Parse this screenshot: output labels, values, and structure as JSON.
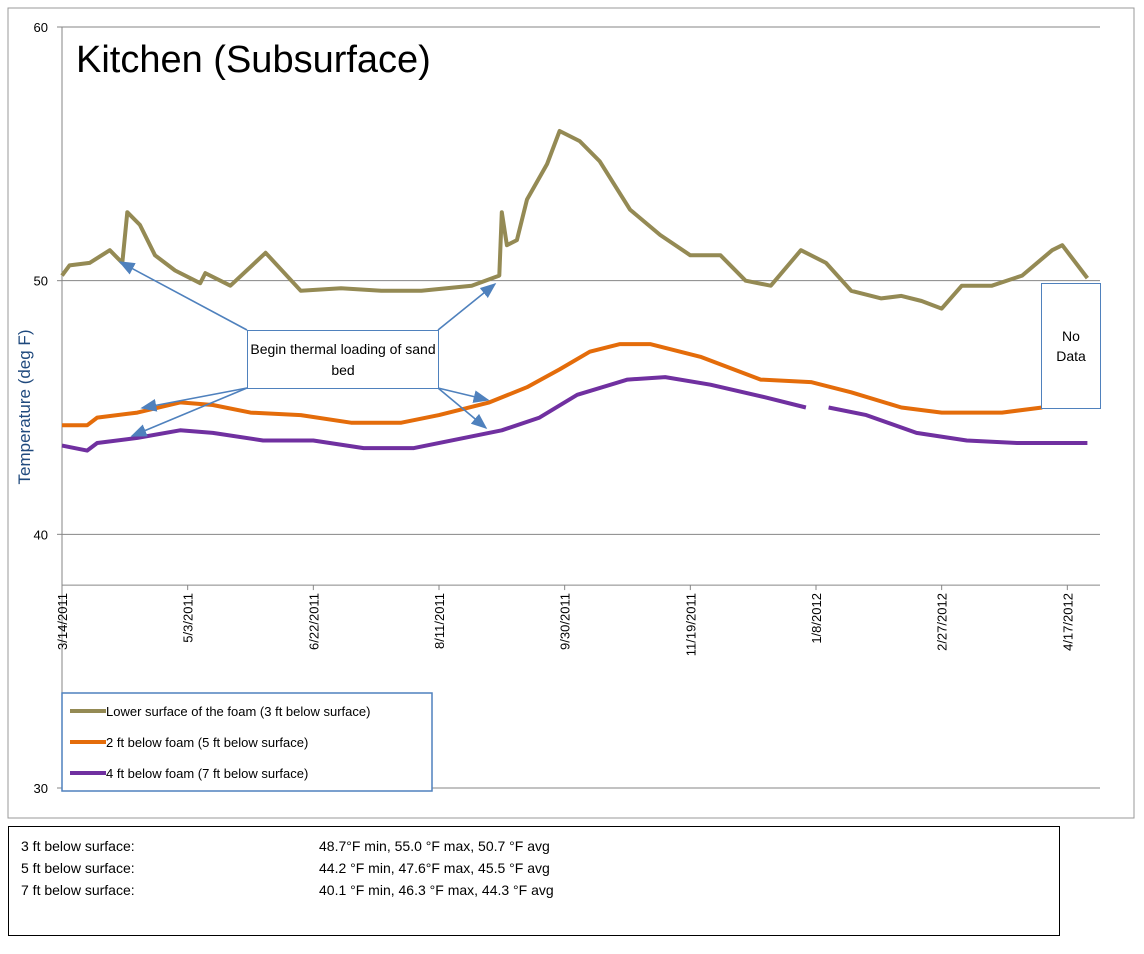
{
  "chart_data": {
    "type": "line",
    "title": "Kitchen (Subsurface)",
    "y_label": "Temperature (deg F)",
    "ylim": [
      30,
      60
    ],
    "yticks": [
      30,
      40,
      50,
      60
    ],
    "grid": true,
    "xaxis_crosses": 38,
    "xlim": [
      "2011-03-14",
      "2012-04-30"
    ],
    "xticks": [
      {
        "value": "2011-03-14",
        "label": "3/14/2011"
      },
      {
        "value": "2011-05-03",
        "label": "5/3/2011"
      },
      {
        "value": "2011-06-22",
        "label": "6/22/2011"
      },
      {
        "value": "2011-08-11",
        "label": "8/11/2011"
      },
      {
        "value": "2011-09-30",
        "label": "9/30/2011"
      },
      {
        "value": "2011-11-19",
        "label": "11/19/2011"
      },
      {
        "value": "2012-01-08",
        "label": "1/8/2012"
      },
      {
        "value": "2012-02-27",
        "label": "2/27/2012"
      },
      {
        "value": "2012-04-17",
        "label": "4/17/2012"
      }
    ],
    "legend": "lower left",
    "annotations": [
      "Begin thermal loading of sand bed",
      "No Data"
    ],
    "series": [
      {
        "name": "Lower surface of the foam (3 ft below surface)",
        "color": "#948a54",
        "x": [
          "2011-03-14",
          "2011-03-17",
          "2011-03-25",
          "2011-04-02",
          "2011-04-05",
          "2011-04-07",
          "2011-04-09",
          "2011-04-14",
          "2011-04-20",
          "2011-04-28",
          "2011-05-08",
          "2011-05-10",
          "2011-05-20",
          "2011-06-03",
          "2011-06-17",
          "2011-07-03",
          "2011-07-19",
          "2011-08-04",
          "2011-08-24",
          "2011-09-04",
          "2011-09-05",
          "2011-09-07",
          "2011-09-11",
          "2011-09-15",
          "2011-09-23",
          "2011-09-28",
          "2011-10-06",
          "2011-10-14",
          "2011-10-26",
          "2011-11-07",
          "2011-11-19",
          "2011-12-01",
          "2011-12-11",
          "2011-12-21",
          "2012-01-02",
          "2012-01-12",
          "2012-01-22",
          "2012-02-03",
          "2012-02-11",
          "2012-02-19",
          "2012-02-27",
          "2012-03-06",
          "2012-03-18",
          "2012-03-30",
          "2012-04-11",
          "2012-04-15",
          "2012-04-25"
        ],
        "values": [
          50.2,
          50.6,
          50.7,
          51.2,
          50.9,
          50.7,
          52.7,
          52.2,
          51.0,
          50.4,
          49.9,
          50.3,
          49.8,
          51.1,
          49.6,
          49.7,
          49.6,
          49.6,
          49.8,
          50.2,
          52.7,
          51.4,
          51.6,
          53.2,
          54.6,
          55.9,
          55.5,
          54.7,
          52.8,
          51.8,
          51.0,
          51.0,
          50.0,
          49.8,
          51.2,
          50.7,
          49.6,
          49.3,
          49.4,
          49.2,
          48.9,
          49.8,
          49.8,
          50.2,
          51.2,
          51.4,
          50.1
        ]
      },
      {
        "name": "2 ft below foam (5 ft below surface)",
        "color": "#e46c0a",
        "x": [
          "2011-03-14",
          "2011-03-24",
          "2011-03-28",
          "2011-04-13",
          "2011-04-30",
          "2011-05-13",
          "2011-05-28",
          "2011-06-17",
          "2011-07-07",
          "2011-07-27",
          "2011-08-11",
          "2011-08-31",
          "2011-09-15",
          "2011-09-28",
          "2011-10-10",
          "2011-10-22",
          "2011-11-03",
          "2011-11-23",
          "2011-12-17",
          "2012-01-06",
          "2012-01-22",
          "2012-02-11",
          "2012-02-27",
          "2012-03-22",
          "2012-04-07"
        ],
        "values": [
          44.3,
          44.3,
          44.6,
          44.8,
          45.2,
          45.1,
          44.8,
          44.7,
          44.4,
          44.4,
          44.7,
          45.2,
          45.8,
          46.5,
          47.2,
          47.5,
          47.5,
          47.0,
          46.1,
          46.0,
          45.6,
          45.0,
          44.8,
          44.8,
          45.0
        ]
      },
      {
        "name": "4 ft below foam (7 ft below surface)",
        "color": "#7030a0",
        "x": [
          "2011-03-14",
          "2011-03-24",
          "2011-03-28",
          "2011-04-13",
          "2011-04-30",
          "2011-05-13",
          "2011-06-02",
          "2011-06-22",
          "2011-07-12",
          "2011-08-01",
          "2011-08-21",
          "2011-09-05",
          "2011-09-20",
          "2011-10-05",
          "2011-10-25",
          "2011-11-09",
          "2011-11-27",
          "2011-12-19",
          "2012-01-04",
          null,
          "2012-01-13",
          "2012-01-28",
          "2012-02-17",
          "2012-03-08",
          "2012-03-28",
          "2012-04-25"
        ],
        "values": [
          43.5,
          43.3,
          43.6,
          43.8,
          44.1,
          44.0,
          43.7,
          43.7,
          43.4,
          43.4,
          43.8,
          44.1,
          44.6,
          45.5,
          46.1,
          46.2,
          45.9,
          45.4,
          45.0,
          null,
          45.0,
          44.7,
          44.0,
          43.7,
          43.6,
          43.6
        ]
      }
    ]
  },
  "summary": {
    "rows": [
      [
        "3 ft below surface:",
        "48.7°F min, 55.0 °F max, 50.7 °F avg"
      ],
      [
        "5 ft below surface:",
        "44.2 °F min, 47.6°F max, 45.5 °F avg"
      ],
      [
        "7 ft below surface:",
        "40.1 °F min, 46.3 °F max, 44.3 °F avg"
      ]
    ]
  }
}
